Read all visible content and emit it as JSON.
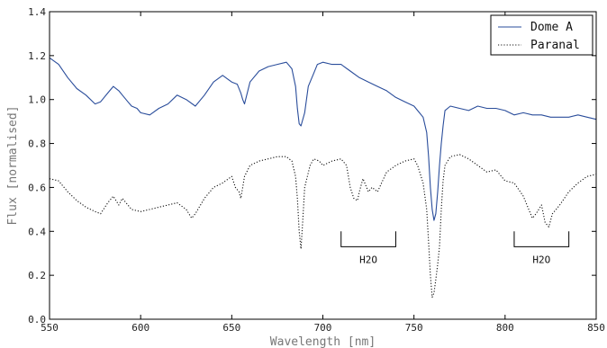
{
  "chart_data": {
    "type": "line",
    "xlabel": "Wavelength [nm]",
    "ylabel": "Flux [normalised]",
    "xlim": [
      550,
      850
    ],
    "ylim": [
      0.0,
      1.4
    ],
    "xticks": [
      "550",
      "600",
      "650",
      "700",
      "750",
      "800",
      "850"
    ],
    "yticks": [
      "0.0",
      "0.2",
      "0.4",
      "0.6",
      "0.8",
      "1.0",
      "1.2",
      "1.4"
    ],
    "grid": false,
    "legend_position": "top-right",
    "series": [
      {
        "name": "Dome A",
        "color": "#2a4d9b",
        "style": "solid",
        "x": [
          550,
          555,
          560,
          565,
          570,
          575,
          578,
          582,
          585,
          588,
          590,
          593,
          595,
          598,
          600,
          605,
          610,
          615,
          620,
          625,
          630,
          635,
          640,
          645,
          650,
          653,
          655,
          656,
          657,
          660,
          665,
          670,
          675,
          680,
          683,
          685,
          686,
          687,
          688,
          690,
          692,
          695,
          697,
          700,
          705,
          710,
          715,
          720,
          725,
          730,
          735,
          740,
          745,
          750,
          752,
          755,
          757,
          758,
          759,
          760,
          761,
          762,
          763,
          764,
          765,
          766,
          767,
          770,
          775,
          780,
          785,
          790,
          795,
          800,
          805,
          810,
          815,
          820,
          825,
          830,
          835,
          840,
          845,
          850
        ],
        "y": [
          1.19,
          1.16,
          1.1,
          1.05,
          1.02,
          0.98,
          0.99,
          1.03,
          1.06,
          1.04,
          1.02,
          0.99,
          0.97,
          0.96,
          0.94,
          0.93,
          0.96,
          0.98,
          1.02,
          1.0,
          0.97,
          1.02,
          1.08,
          1.11,
          1.08,
          1.07,
          1.03,
          1.0,
          0.98,
          1.08,
          1.13,
          1.15,
          1.16,
          1.17,
          1.14,
          1.06,
          0.96,
          0.89,
          0.88,
          0.94,
          1.06,
          1.12,
          1.16,
          1.17,
          1.16,
          1.16,
          1.13,
          1.1,
          1.08,
          1.06,
          1.04,
          1.01,
          0.99,
          0.97,
          0.95,
          0.92,
          0.85,
          0.74,
          0.6,
          0.5,
          0.45,
          0.48,
          0.58,
          0.7,
          0.8,
          0.88,
          0.95,
          0.97,
          0.96,
          0.95,
          0.97,
          0.96,
          0.96,
          0.95,
          0.93,
          0.94,
          0.93,
          0.93,
          0.92,
          0.92,
          0.92,
          0.93,
          0.92,
          0.91
        ]
      },
      {
        "name": "Paranal",
        "color": "#111111",
        "style": "dotted",
        "x": [
          550,
          555,
          560,
          565,
          570,
          575,
          578,
          582,
          585,
          588,
          590,
          595,
          600,
          605,
          610,
          615,
          620,
          625,
          628,
          630,
          635,
          640,
          645,
          650,
          652,
          654,
          655,
          656,
          657,
          660,
          665,
          670,
          675,
          680,
          683,
          685,
          686,
          687,
          688,
          689,
          690,
          693,
          695,
          698,
          700,
          705,
          710,
          713,
          715,
          717,
          719,
          720,
          722,
          725,
          727,
          730,
          735,
          740,
          745,
          750,
          752,
          755,
          757,
          758,
          759,
          760,
          761,
          762,
          763,
          764,
          765,
          766,
          767,
          770,
          775,
          780,
          785,
          790,
          795,
          800,
          805,
          810,
          813,
          815,
          817,
          820,
          822,
          824,
          826,
          828,
          830,
          835,
          840,
          845,
          850
        ],
        "y": [
          0.64,
          0.63,
          0.58,
          0.54,
          0.51,
          0.49,
          0.48,
          0.53,
          0.56,
          0.52,
          0.55,
          0.5,
          0.49,
          0.5,
          0.51,
          0.52,
          0.53,
          0.5,
          0.46,
          0.48,
          0.55,
          0.6,
          0.62,
          0.65,
          0.6,
          0.58,
          0.55,
          0.6,
          0.65,
          0.7,
          0.72,
          0.73,
          0.74,
          0.74,
          0.72,
          0.65,
          0.55,
          0.4,
          0.32,
          0.45,
          0.6,
          0.7,
          0.73,
          0.72,
          0.7,
          0.72,
          0.73,
          0.7,
          0.6,
          0.55,
          0.54,
          0.58,
          0.64,
          0.58,
          0.6,
          0.58,
          0.67,
          0.7,
          0.72,
          0.73,
          0.7,
          0.62,
          0.5,
          0.35,
          0.2,
          0.1,
          0.12,
          0.18,
          0.25,
          0.33,
          0.5,
          0.63,
          0.7,
          0.74,
          0.75,
          0.73,
          0.7,
          0.67,
          0.68,
          0.63,
          0.62,
          0.56,
          0.5,
          0.46,
          0.48,
          0.52,
          0.44,
          0.42,
          0.48,
          0.5,
          0.52,
          0.58,
          0.62,
          0.65,
          0.66
        ]
      }
    ],
    "annotations": [
      {
        "text": "H2O",
        "x_start": 710,
        "x_end": 740,
        "y_bracket": 0.33,
        "y_tick_top": 0.4
      },
      {
        "text": "H2O",
        "x_start": 805,
        "x_end": 835,
        "y_bracket": 0.33,
        "y_tick_top": 0.4
      }
    ]
  }
}
